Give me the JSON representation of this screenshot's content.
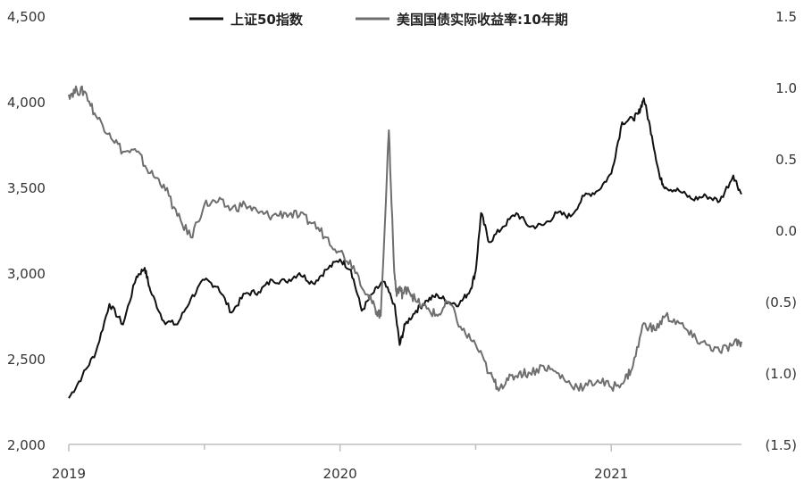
{
  "chart_data": {
    "type": "line",
    "title": "",
    "xlabel": "",
    "x_ticks": [
      "2019",
      "2020",
      "2021"
    ],
    "y_left": {
      "ticks": [
        "2,000",
        "2,500",
        "3,000",
        "3,500",
        "4,000",
        "4,500"
      ],
      "range": [
        2000,
        4500
      ]
    },
    "y_right": {
      "ticks": [
        "(1.5)",
        "(1.0)",
        "(0.5)",
        "0.0",
        "0.5",
        "1.0",
        "1.5"
      ],
      "range": [
        -1.5,
        1.5
      ]
    },
    "legend_placement": "top-center",
    "grid": false,
    "series": [
      {
        "name": "上证50指数",
        "axis": "left",
        "color": "#111111",
        "x": [
          2019.0,
          2019.05,
          2019.1,
          2019.15,
          2019.2,
          2019.25,
          2019.28,
          2019.3,
          2019.35,
          2019.4,
          2019.45,
          2019.5,
          2019.55,
          2019.6,
          2019.65,
          2019.7,
          2019.75,
          2019.8,
          2019.85,
          2019.9,
          2019.95,
          2020.0,
          2020.04,
          2020.08,
          2020.12,
          2020.16,
          2020.2,
          2020.22,
          2020.24,
          2020.28,
          2020.32,
          2020.36,
          2020.4,
          2020.44,
          2020.48,
          2020.5,
          2020.52,
          2020.55,
          2020.6,
          2020.65,
          2020.7,
          2020.75,
          2020.8,
          2020.85,
          2020.9,
          2020.95,
          2021.0,
          2021.04,
          2021.08,
          2021.1,
          2021.12,
          2021.15,
          2021.18,
          2021.2,
          2021.25,
          2021.3,
          2021.35,
          2021.4,
          2021.45,
          2021.48
        ],
        "values": [
          2270,
          2400,
          2540,
          2820,
          2700,
          2980,
          3030,
          2900,
          2720,
          2700,
          2850,
          2960,
          2920,
          2770,
          2880,
          2890,
          2960,
          2950,
          3000,
          2940,
          3020,
          3080,
          3020,
          2780,
          2880,
          2950,
          2820,
          2580,
          2700,
          2780,
          2840,
          2870,
          2830,
          2820,
          2900,
          3010,
          3350,
          3180,
          3270,
          3350,
          3270,
          3280,
          3350,
          3330,
          3450,
          3480,
          3580,
          3880,
          3900,
          3930,
          4020,
          3800,
          3550,
          3500,
          3480,
          3430,
          3450,
          3420,
          3570,
          3460
        ]
      },
      {
        "name": "美国国债实际收益率:10年期",
        "axis": "right",
        "color": "#6e6e6e",
        "x": [
          2019.0,
          2019.03,
          2019.06,
          2019.1,
          2019.15,
          2019.2,
          2019.25,
          2019.3,
          2019.35,
          2019.4,
          2019.45,
          2019.5,
          2019.55,
          2019.6,
          2019.65,
          2019.7,
          2019.75,
          2019.8,
          2019.85,
          2019.9,
          2019.95,
          2020.0,
          2020.05,
          2020.1,
          2020.13,
          2020.15,
          2020.18,
          2020.2,
          2020.21,
          2020.22,
          2020.23,
          2020.25,
          2020.28,
          2020.32,
          2020.36,
          2020.4,
          2020.45,
          2020.5,
          2020.55,
          2020.58,
          2020.62,
          2020.66,
          2020.7,
          2020.75,
          2020.8,
          2020.85,
          2020.9,
          2020.95,
          2021.0,
          2021.05,
          2021.08,
          2021.12,
          2021.16,
          2021.2,
          2021.25,
          2021.3,
          2021.35,
          2021.4,
          2021.45,
          2021.48
        ],
        "values": [
          0.95,
          0.98,
          0.97,
          0.8,
          0.68,
          0.55,
          0.55,
          0.4,
          0.32,
          0.1,
          -0.05,
          0.18,
          0.2,
          0.15,
          0.18,
          0.12,
          0.1,
          0.12,
          0.1,
          0.05,
          -0.05,
          -0.15,
          -0.25,
          -0.45,
          -0.55,
          -0.6,
          0.7,
          -0.3,
          -0.45,
          -0.4,
          -0.45,
          -0.4,
          -0.5,
          -0.55,
          -0.6,
          -0.5,
          -0.7,
          -0.8,
          -1.0,
          -1.1,
          -1.05,
          -1.0,
          -1.0,
          -0.95,
          -1.0,
          -1.08,
          -1.1,
          -1.05,
          -1.1,
          -1.05,
          -0.95,
          -0.65,
          -0.7,
          -0.6,
          -0.65,
          -0.75,
          -0.8,
          -0.85,
          -0.8,
          -0.78
        ]
      }
    ]
  }
}
